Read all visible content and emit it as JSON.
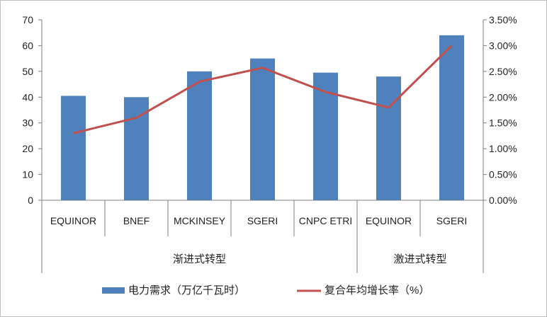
{
  "chart_data": {
    "type": "bar",
    "categories": [
      "EQUINOR",
      "BNEF",
      "MCKINSEY",
      "SGERI",
      "CNPC ETRI",
      "EQUINOR",
      "SGERI"
    ],
    "groups": [
      {
        "label": "渐进式转型",
        "count": 5
      },
      {
        "label": "激进式转型",
        "count": 2
      }
    ],
    "series": [
      {
        "name": "电力需求（万亿千瓦时）",
        "type": "bar",
        "axis": "left",
        "color": "#4f81bd",
        "values": [
          40.5,
          40,
          50,
          55,
          49.5,
          48,
          64
        ]
      },
      {
        "name": "复合年均增长率（%）",
        "type": "line",
        "axis": "right",
        "color": "#c0504d",
        "values": [
          1.3,
          1.6,
          2.3,
          2.57,
          2.1,
          1.8,
          3.0
        ]
      }
    ],
    "y_left": {
      "min": 0,
      "max": 70,
      "ticks": [
        "0",
        "10",
        "20",
        "30",
        "40",
        "50",
        "60",
        "70"
      ]
    },
    "y_right": {
      "min": 0,
      "max": 3.5,
      "ticks": [
        "0.00%",
        "0.50%",
        "1.00%",
        "1.50%",
        "2.00%",
        "2.50%",
        "3.00%",
        "3.50%"
      ]
    },
    "grid": false,
    "legend_position": "bottom"
  }
}
